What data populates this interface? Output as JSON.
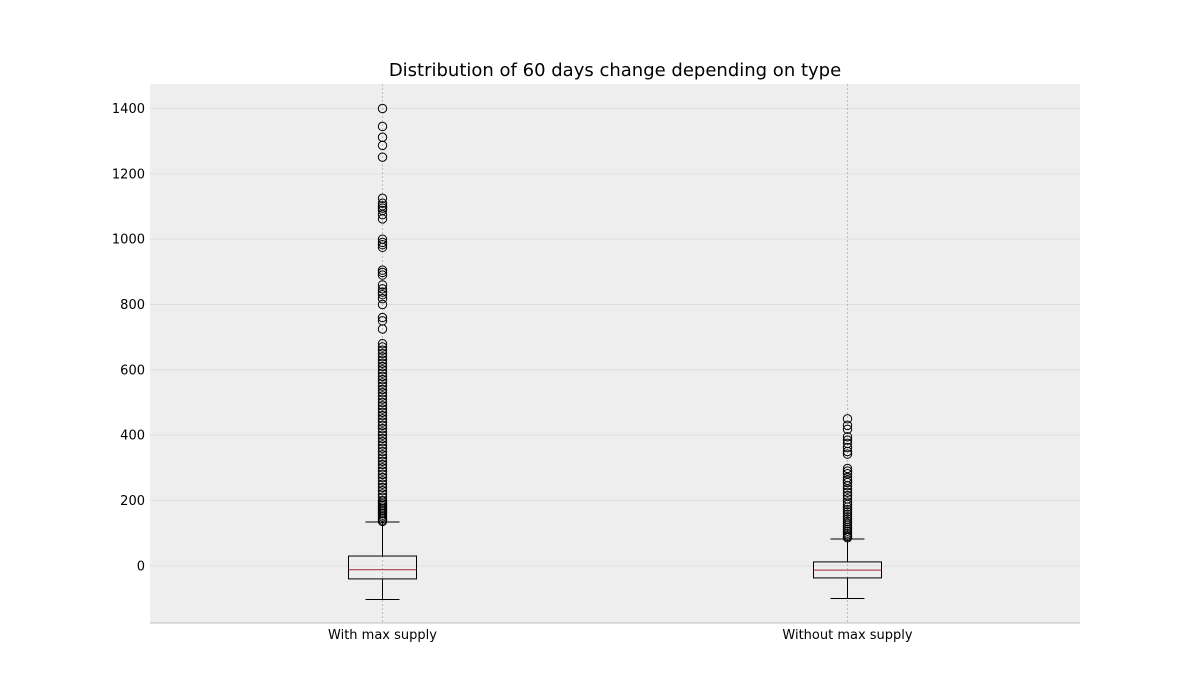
{
  "chart_data": {
    "type": "boxplot",
    "title": "Distribution of 60 days change depending on type",
    "xlabel": "",
    "ylabel": "",
    "categories": [
      "With max supply",
      "Without max supply"
    ],
    "ylim": [
      -175,
      1475
    ],
    "yticks": [
      0,
      200,
      400,
      600,
      800,
      1000,
      1200,
      1400
    ],
    "grid": true,
    "colors": {
      "plot_background": "#eeeeee",
      "grid": "#dddddd",
      "box": "#000000",
      "median": "#a0263c",
      "axis": "#bcbcbc"
    },
    "boxes": [
      {
        "label": "With max supply",
        "whisker_low": -103,
        "q1": -40,
        "median": -12,
        "q3": 30,
        "whisker_high": 134,
        "outliers": [
          1400,
          1345,
          1312,
          1287,
          1251,
          1125,
          1110,
          1102,
          1095,
          1088,
          1075,
          1062,
          1000,
          990,
          983,
          975,
          905,
          898,
          890,
          860,
          848,
          838,
          830,
          818,
          800,
          760,
          750,
          725,
          680,
          670,
          660,
          650,
          640,
          630,
          620,
          610,
          600,
          590,
          580,
          570,
          560,
          550,
          540,
          530,
          520,
          510,
          500,
          490,
          480,
          470,
          460,
          450,
          440,
          430,
          420,
          410,
          400,
          390,
          380,
          370,
          360,
          350,
          340,
          330,
          320,
          310,
          300,
          290,
          280,
          270,
          260,
          250,
          240,
          230,
          220,
          210,
          200,
          195,
          190,
          185,
          180,
          175,
          170,
          165,
          160,
          155,
          150,
          145,
          140,
          136
        ]
      },
      {
        "label": "Without max supply",
        "whisker_low": -100,
        "q1": -37,
        "median": -13,
        "q3": 12,
        "whisker_high": 82,
        "outliers": [
          450,
          430,
          418,
          395,
          385,
          375,
          362,
          350,
          342,
          298,
          290,
          282,
          270,
          262,
          255,
          245,
          235,
          225,
          215,
          205,
          195,
          188,
          180,
          172,
          165,
          158,
          150,
          143,
          136,
          130,
          124,
          118,
          112,
          106,
          100,
          95,
          90,
          86
        ]
      }
    ]
  }
}
